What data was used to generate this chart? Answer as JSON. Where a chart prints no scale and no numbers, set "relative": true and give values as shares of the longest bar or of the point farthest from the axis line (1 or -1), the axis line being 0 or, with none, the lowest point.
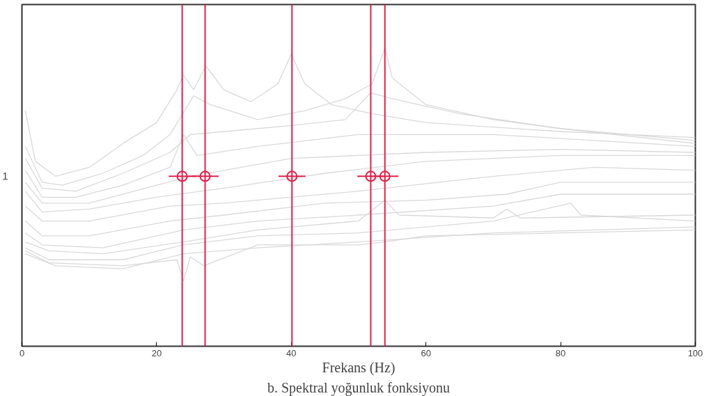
{
  "chart_data": {
    "type": "line",
    "title": "b. Spektral yoğunluk fonksiyonu",
    "xlabel": "Frekans (Hz)",
    "relative": true,
    "xlim": [
      0,
      100
    ],
    "xticks": [
      0,
      20,
      40,
      60,
      80,
      100
    ],
    "grid": false,
    "marker": "none",
    "line_style": "solid",
    "annotations": [
      "1"
    ],
    "series": [
      {
        "color": "#d9d9d9",
        "x": [
          0.5,
          2,
          5,
          10,
          15,
          20,
          23,
          24,
          25.5,
          27.3,
          30,
          34,
          38,
          40,
          42,
          46,
          52,
          60,
          80,
          100
        ],
        "values": [
          0.79,
          0.62,
          0.57,
          0.6,
          0.68,
          0.75,
          0.86,
          0.91,
          0.86,
          0.94,
          0.86,
          0.82,
          0.88,
          0.98,
          0.88,
          0.81,
          0.78,
          0.75,
          0.72,
          0.7
        ]
      },
      {
        "color": "#d9d9d9",
        "x": [
          0.5,
          3,
          6,
          12,
          18,
          22,
          25.5,
          28,
          35,
          42,
          48,
          52,
          53.9,
          55,
          60,
          70,
          80,
          100
        ],
        "values": [
          0.67,
          0.55,
          0.54,
          0.58,
          0.64,
          0.71,
          0.84,
          0.81,
          0.76,
          0.79,
          0.83,
          0.88,
          1.0,
          0.9,
          0.81,
          0.76,
          0.73,
          0.69
        ]
      },
      {
        "color": "#d9d9d9",
        "x": [
          0.5,
          3,
          8,
          15,
          22,
          25,
          30,
          40,
          48,
          51.8,
          55,
          65,
          80,
          100
        ],
        "values": [
          0.63,
          0.53,
          0.52,
          0.58,
          0.65,
          0.71,
          0.72,
          0.74,
          0.76,
          0.85,
          0.83,
          0.78,
          0.73,
          0.68
        ]
      },
      {
        "color": "#d9d9d9",
        "x": [
          0.5,
          3,
          8,
          15,
          22,
          24,
          26,
          35,
          50,
          70,
          85,
          100
        ],
        "values": [
          0.59,
          0.5,
          0.5,
          0.54,
          0.6,
          0.71,
          0.64,
          0.67,
          0.71,
          0.71,
          0.69,
          0.67
        ]
      },
      {
        "color": "#d9d9d9",
        "x": [
          0.5,
          3,
          10,
          20,
          25,
          40,
          60,
          80,
          100
        ],
        "values": [
          0.55,
          0.48,
          0.48,
          0.54,
          0.57,
          0.63,
          0.65,
          0.66,
          0.65
        ]
      },
      {
        "color": "#d9d9d9",
        "x": [
          0.5,
          3,
          10,
          20,
          30,
          45,
          60,
          80,
          100
        ],
        "values": [
          0.52,
          0.45,
          0.46,
          0.5,
          0.53,
          0.58,
          0.62,
          0.64,
          0.64
        ]
      },
      {
        "color": "#d9d9d9",
        "x": [
          0.5,
          3,
          10,
          22,
          30,
          50,
          70,
          85,
          100
        ],
        "values": [
          0.47,
          0.42,
          0.42,
          0.47,
          0.48,
          0.52,
          0.57,
          0.6,
          0.59
        ]
      },
      {
        "color": "#d9d9d9",
        "x": [
          0.5,
          3,
          10,
          22,
          30,
          45,
          60,
          72,
          80,
          90,
          100
        ],
        "values": [
          0.42,
          0.37,
          0.37,
          0.42,
          0.44,
          0.48,
          0.49,
          0.51,
          0.55,
          0.55,
          0.55
        ]
      },
      {
        "color": "#d9d9d9",
        "x": [
          0.5,
          3,
          12,
          24,
          35,
          50,
          70,
          80,
          100
        ],
        "values": [
          0.38,
          0.34,
          0.33,
          0.39,
          0.42,
          0.44,
          0.47,
          0.51,
          0.51
        ]
      },
      {
        "color": "#d9d9d9",
        "x": [
          0.5,
          4,
          12,
          24,
          35,
          50,
          53.9,
          56,
          70,
          72,
          74,
          100
        ],
        "values": [
          0.35,
          0.32,
          0.31,
          0.35,
          0.39,
          0.42,
          0.49,
          0.44,
          0.43,
          0.46,
          0.43,
          0.44
        ]
      },
      {
        "color": "#d9d9d9",
        "x": [
          0.5,
          4,
          15,
          24,
          35,
          50,
          70,
          81.5,
          83,
          100
        ],
        "values": [
          0.33,
          0.29,
          0.29,
          0.34,
          0.37,
          0.38,
          0.42,
          0.48,
          0.44,
          0.42
        ]
      },
      {
        "color": "#d9d9d9",
        "x": [
          0.5,
          4,
          15,
          23,
          24,
          25,
          27,
          35,
          50,
          53.9,
          60,
          80,
          100
        ],
        "values": [
          0.32,
          0.28,
          0.27,
          0.29,
          0.22,
          0.3,
          0.27,
          0.34,
          0.34,
          0.35,
          0.37,
          0.38,
          0.39
        ]
      },
      {
        "color": "#d9d9d9",
        "x": [
          0.5,
          5,
          15,
          24,
          35,
          50,
          70,
          100
        ],
        "values": [
          0.31,
          0.27,
          0.26,
          0.31,
          0.33,
          0.35,
          0.38,
          0.4
        ]
      },
      {
        "type": "scatter",
        "marker": "circle",
        "color": "#e0204a",
        "x": [
          23.8,
          27.2,
          40.1,
          51.8,
          53.9
        ],
        "values": [
          0.57,
          0.57,
          0.57,
          0.57,
          0.57
        ],
        "xerrors": [
          2,
          2,
          2,
          2,
          2
        ]
      }
    ],
    "ref_lines": [
      {
        "axis": "x",
        "value": 23.8,
        "color": "#e0204a"
      },
      {
        "axis": "x",
        "value": 27.2,
        "color": "#e0204a"
      },
      {
        "axis": "x",
        "value": 40.1,
        "color": "#e0204a"
      },
      {
        "axis": "x",
        "value": 51.8,
        "color": "#e0204a"
      },
      {
        "axis": "x",
        "value": 53.9,
        "color": "#e0204a"
      }
    ]
  }
}
